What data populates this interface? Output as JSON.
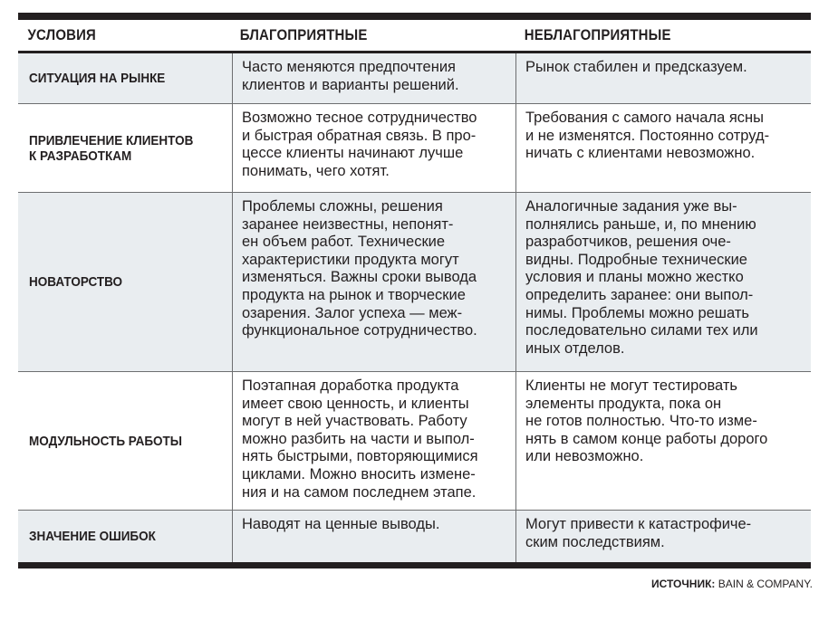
{
  "header": {
    "col1": "УСЛОВИЯ",
    "col2": "БЛАГОПРИЯТНЫЕ",
    "col3": "НЕБЛАГОПРИЯТНЫЕ"
  },
  "rows": [
    {
      "condition": "СИТУАЦИЯ НА РЫНКЕ",
      "favorable": "Часто меняются предпочтения\nклиентов и варианты решений.",
      "unfavorable": "Рынок стабилен и предсказуем."
    },
    {
      "condition": "ПРИВЛЕЧЕНИЕ КЛИЕНТОВ\nК РАЗРАБОТКАМ",
      "favorable": "Возможно тесное сотрудничество\nи быстрая обратная связь. В про-\nцессе клиенты начинают лучше\nпонимать, чего хотят.",
      "unfavorable": "Требования с самого начала ясны\nи не изменятся. Постоянно сотруд-\nничать с клиентами невозможно."
    },
    {
      "condition": "НОВАТОРСТВО",
      "favorable": "Проблемы сложны, решения\nзаранее неизвестны, непонят-\nен объем работ. Технические\nхарактеристики продукта могут\nизменяться. Важны сроки вывода\nпродукта на рынок и творческие\nозарения. Залог успеха — меж-\nфункциональное сотрудничество.",
      "unfavorable": "Аналогичные задания уже вы-\nполнялись раньше, и, по мнению\nразработчиков, решения оче-\nвидны. Подробные технические\nусловия и планы можно жестко\nопределить заранее: они выпол-\nнимы. Проблемы можно решать\nпоследовательно силами тех или\nиных отделов."
    },
    {
      "condition": "МОДУЛЬНОСТЬ РАБОТЫ",
      "favorable": "Поэтапная доработка продукта\nимеет свою ценность, и клиенты\nмогут в ней участвовать. Работу\nможно разбить на части и выпол-\nнять быстрыми, повторяющимися\nциклами. Можно вносить измене-\nния и на самом последнем этапе.",
      "unfavorable": "Клиенты не могут тестировать\nэлементы продукта, пока он\nне готов полностью. Что-то изме-\nнять в самом конце работы дорого\nили невозможно."
    },
    {
      "condition": "ЗНАЧЕНИЕ ОШИБОК",
      "favorable": "Наводят на ценные выводы.",
      "unfavorable": "Могут привести к катастрофиче-\nским последствиям."
    }
  ],
  "source": {
    "label": "ИСТОЧНИК:",
    "value": "BAIN & COMPANY."
  },
  "colors": {
    "shade": "#e9edf0",
    "rule": "#231f20"
  }
}
